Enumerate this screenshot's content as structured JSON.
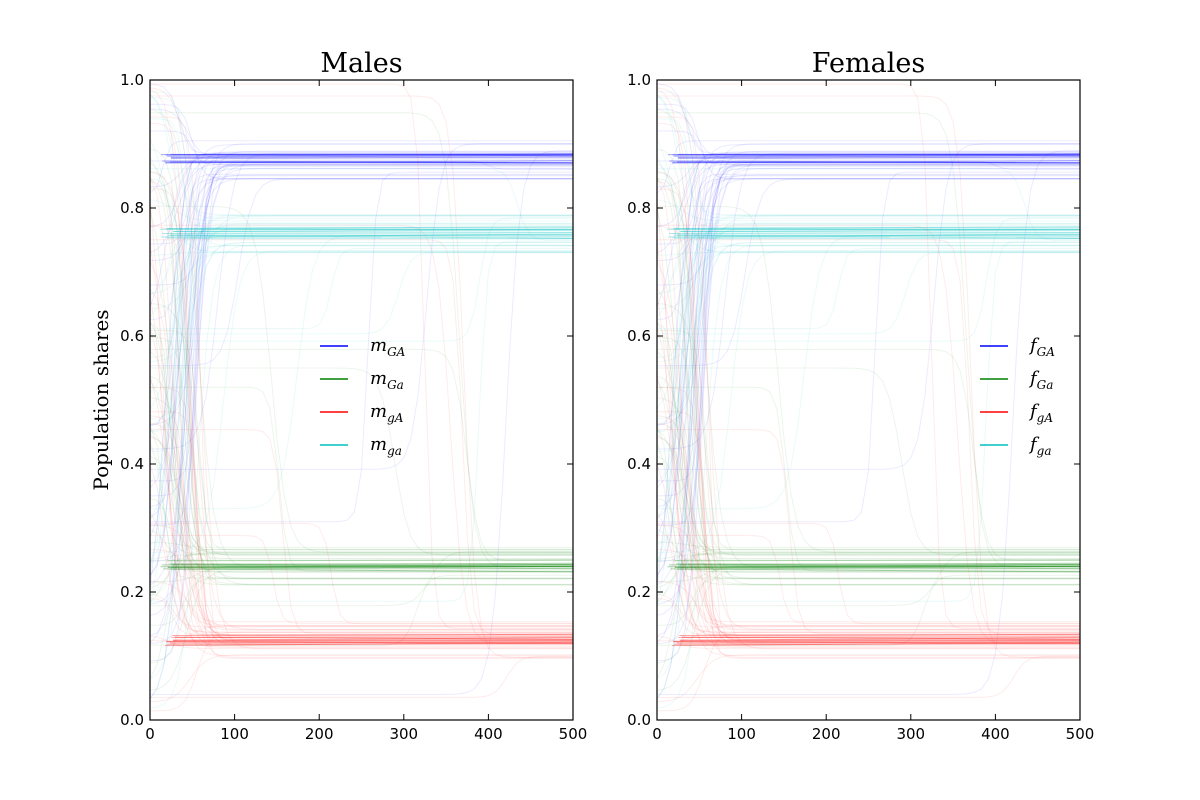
{
  "chart_data": [
    {
      "type": "line",
      "title": "Males",
      "ylabel": "Population shares",
      "xlabel": "",
      "xlim": [
        0,
        500
      ],
      "ylim": [
        0.0,
        1.0
      ],
      "xticks": [
        "0",
        "100",
        "200",
        "300",
        "400",
        "500"
      ],
      "yticks": [
        "0.0",
        "0.2",
        "0.4",
        "0.6",
        "0.8",
        "1.0"
      ],
      "legend_placement": "center-right",
      "series": [
        {
          "name": "m_GA",
          "label_base": "m",
          "label_sub": "GA",
          "color": "#0000ff",
          "final": 0.875
        },
        {
          "name": "m_Ga",
          "label_base": "m",
          "label_sub": "Ga",
          "color": "#008000",
          "final": 0.24
        },
        {
          "name": "m_gA",
          "label_base": "m",
          "label_sub": "gA",
          "color": "#ff0000",
          "final": 0.125
        },
        {
          "name": "m_ga",
          "label_base": "m",
          "label_sub": "ga",
          "color": "#00bfbf",
          "final": 0.76
        }
      ]
    },
    {
      "type": "line",
      "title": "Females",
      "ylabel": "",
      "xlabel": "",
      "xlim": [
        0,
        500
      ],
      "ylim": [
        0.0,
        1.0
      ],
      "xticks": [
        "0",
        "100",
        "200",
        "300",
        "400",
        "500"
      ],
      "yticks": [
        "0.0",
        "0.2",
        "0.4",
        "0.6",
        "0.8",
        "1.0"
      ],
      "legend_placement": "center-right",
      "series": [
        {
          "name": "f_GA",
          "label_base": "f",
          "label_sub": "GA",
          "color": "#0000ff",
          "final": 0.875
        },
        {
          "name": "f_Ga",
          "label_base": "f",
          "label_sub": "Ga",
          "color": "#008000",
          "final": 0.24
        },
        {
          "name": "f_gA",
          "label_base": "f",
          "label_sub": "gA",
          "color": "#ff0000",
          "final": 0.125
        },
        {
          "name": "f_ga",
          "label_base": "f",
          "label_sub": "ga",
          "color": "#00bfbf",
          "final": 0.76
        }
      ]
    }
  ]
}
